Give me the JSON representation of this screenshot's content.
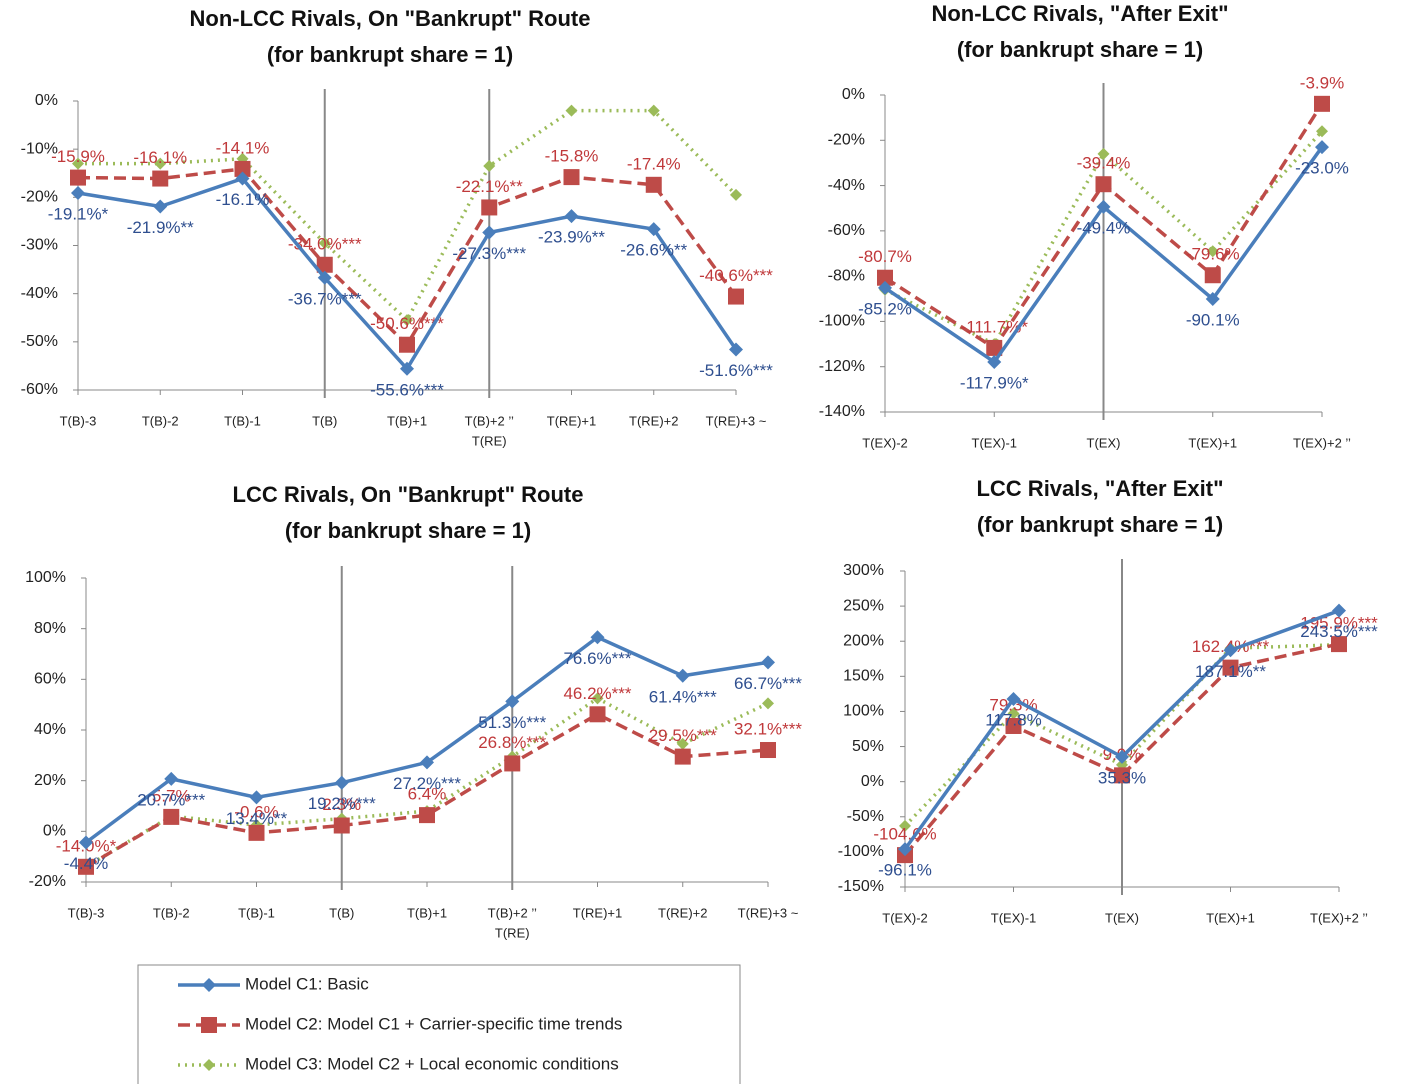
{
  "chart_data": [
    {
      "type": "line",
      "title": "Non-LCC Rivals, On \"Bankrupt\" Route",
      "subtitle": "(for bankrupt share = 1)",
      "categories": [
        "T(B)-3",
        "T(B)-2",
        "T(B)-1",
        "T(B)",
        "T(B)+1",
        [
          "T(B)+2 ’’",
          "T(RE)"
        ],
        "T(RE)+1",
        "T(RE)+2",
        "T(RE)+3 ~"
      ],
      "vlines": [
        3,
        5
      ],
      "ylim": [
        -60,
        0
      ],
      "yticks": [
        {
          "value": -60,
          "label": "-60%"
        },
        {
          "value": -50,
          "label": "-50%"
        },
        {
          "value": -40,
          "label": "-40%"
        },
        {
          "value": -30,
          "label": "-30%"
        },
        {
          "value": -20,
          "label": "-20%"
        },
        {
          "value": -10,
          "label": "-10%"
        },
        {
          "value": 0,
          "label": "0%"
        }
      ],
      "series": [
        {
          "color": "#4a7ebb",
          "values": [
            -19.1,
            -21.9,
            -16.1,
            -36.7,
            -55.6,
            -27.3,
            -23.9,
            -26.6,
            -51.6
          ],
          "value_labels": [
            "-19.1%*",
            "-21.9%**",
            "-16.1%",
            "-36.7%***",
            "-55.6%***",
            "-27.3%***",
            "-23.9%**",
            "-26.6%**",
            "-51.6%***"
          ]
        },
        {
          "color": "#be4b48",
          "values": [
            -15.9,
            -16.1,
            -14.1,
            -34.0,
            -50.6,
            -22.1,
            -15.8,
            -17.4,
            -40.6
          ],
          "value_labels": [
            "-15.9%",
            "-16.1%",
            "-14.1%",
            "-34.0%***",
            "-50.6%***",
            "-22.1%**",
            "-15.8%",
            "-17.4%",
            "-40.6%***"
          ]
        },
        {
          "color": "#9bbb59",
          "values": [
            -13,
            -13,
            -12,
            -29.5,
            -45.5,
            -13.5,
            -2,
            -2,
            -19.5
          ]
        }
      ]
    },
    {
      "type": "line",
      "title": "Non-LCC Rivals, \"After Exit\"",
      "subtitle": "(for bankrupt share = 1)",
      "categories": [
        "T(EX)-2",
        "T(EX)-1",
        "T(EX)",
        "T(EX)+1",
        "T(EX)+2 ’’"
      ],
      "vlines": [
        2
      ],
      "ylim": [
        -140,
        0
      ],
      "yticks": [
        {
          "value": -140,
          "label": "-140%"
        },
        {
          "value": -120,
          "label": "-120%"
        },
        {
          "value": -100,
          "label": "-100%"
        },
        {
          "value": -80,
          "label": "-80%"
        },
        {
          "value": -60,
          "label": "-60%"
        },
        {
          "value": -40,
          "label": "-40%"
        },
        {
          "value": -20,
          "label": "-20%"
        },
        {
          "value": 0,
          "label": "0%"
        }
      ],
      "series": [
        {
          "color": "#4a7ebb",
          "values": [
            -85.2,
            -117.9,
            -49.4,
            -90.1,
            -23.0
          ],
          "value_labels": [
            "-85.2%",
            "-117.9%*",
            "-49.4%",
            "-90.1%",
            "-23.0%"
          ]
        },
        {
          "color": "#be4b48",
          "values": [
            -80.7,
            -111.7,
            -39.4,
            -79.6,
            -3.9
          ],
          "value_labels": [
            "-80.7%",
            "-111.7%*",
            "-39.4%",
            "-79.6%",
            "-3.9%"
          ]
        },
        {
          "color": "#9bbb59",
          "values": [
            -86,
            -110,
            -26,
            -69,
            -16
          ]
        }
      ]
    },
    {
      "type": "line",
      "title": "LCC Rivals, On \"Bankrupt\" Route",
      "subtitle": "(for bankrupt share = 1)",
      "categories": [
        "T(B)-3",
        "T(B)-2",
        "T(B)-1",
        "T(B)",
        "T(B)+1",
        [
          "T(B)+2 ’’",
          "T(RE)"
        ],
        "T(RE)+1",
        "T(RE)+2",
        "T(RE)+3 ~"
      ],
      "vlines": [
        3,
        5
      ],
      "ylim": [
        -20,
        100
      ],
      "yticks": [
        {
          "value": -20,
          "label": "-20%"
        },
        {
          "value": 0,
          "label": "0%"
        },
        {
          "value": 20,
          "label": "20%"
        },
        {
          "value": 40,
          "label": "40%"
        },
        {
          "value": 60,
          "label": "60%"
        },
        {
          "value": 80,
          "label": "80%"
        },
        {
          "value": 100,
          "label": "100%"
        }
      ],
      "series": [
        {
          "color": "#4a7ebb",
          "values": [
            -4.4,
            20.7,
            13.4,
            19.2,
            27.2,
            51.3,
            76.6,
            61.4,
            66.7
          ],
          "value_labels": [
            "-4.4%",
            "20.7%***",
            "13.4%**",
            "19.2%***",
            "27.2%***",
            "51.3%***",
            "76.6%***",
            "61.4%***",
            "66.7%***"
          ]
        },
        {
          "color": "#be4b48",
          "values": [
            -14.0,
            5.7,
            -0.6,
            2.3,
            6.4,
            26.8,
            46.2,
            29.5,
            32.1
          ],
          "value_labels": [
            "-14.0%*",
            "5.7%",
            "-0.6%",
            "2.3%",
            "6.4%",
            "26.8%***",
            "46.2%***",
            "29.5%***",
            "32.1%***"
          ]
        },
        {
          "color": "#9bbb59",
          "values": [
            -14,
            6,
            2.5,
            5,
            8,
            29.5,
            52.5,
            34.5,
            50.5
          ]
        }
      ]
    },
    {
      "type": "line",
      "title": "LCC Rivals, \"After Exit\"",
      "subtitle": "(for bankrupt share = 1)",
      "categories": [
        "T(EX)-2",
        "T(EX)-1",
        "T(EX)",
        "T(EX)+1",
        "T(EX)+2 ’’"
      ],
      "vlines": [
        2
      ],
      "ylim": [
        -150,
        300
      ],
      "yticks": [
        {
          "value": -150,
          "label": "-150%"
        },
        {
          "value": -100,
          "label": "-100%"
        },
        {
          "value": -50,
          "label": "-50%"
        },
        {
          "value": 0,
          "label": "0%"
        },
        {
          "value": 50,
          "label": "50%"
        },
        {
          "value": 100,
          "label": "100%"
        },
        {
          "value": 150,
          "label": "150%"
        },
        {
          "value": 200,
          "label": "200%"
        },
        {
          "value": 250,
          "label": "250%"
        },
        {
          "value": 300,
          "label": "300%"
        }
      ],
      "series": [
        {
          "color": "#4a7ebb",
          "values": [
            -96.1,
            117.8,
            35.3,
            187.1,
            243.5
          ],
          "value_labels": [
            "-96.1%",
            "117.8%",
            "35.3%",
            "187.1%**",
            "243.5%***"
          ]
        },
        {
          "color": "#be4b48",
          "values": [
            -104.6,
            79.3,
            9.0,
            162.4,
            195.9
          ],
          "value_labels": [
            "-104.6%",
            "79.3%",
            "9.0%",
            "162.4%***",
            "195.9%***"
          ]
        },
        {
          "color": "#9bbb59",
          "values": [
            -63,
            97,
            24,
            190,
            195
          ]
        }
      ]
    }
  ],
  "legend": [
    {
      "name": "Model C1: Basic",
      "color": "#4a7ebb"
    },
    {
      "name": "Model C2: Model C1 + Carrier-specific time trends",
      "color": "#be4b48"
    },
    {
      "name": "Model C3: Model C2 + Local economic conditions",
      "color": "#9bbb59"
    }
  ]
}
